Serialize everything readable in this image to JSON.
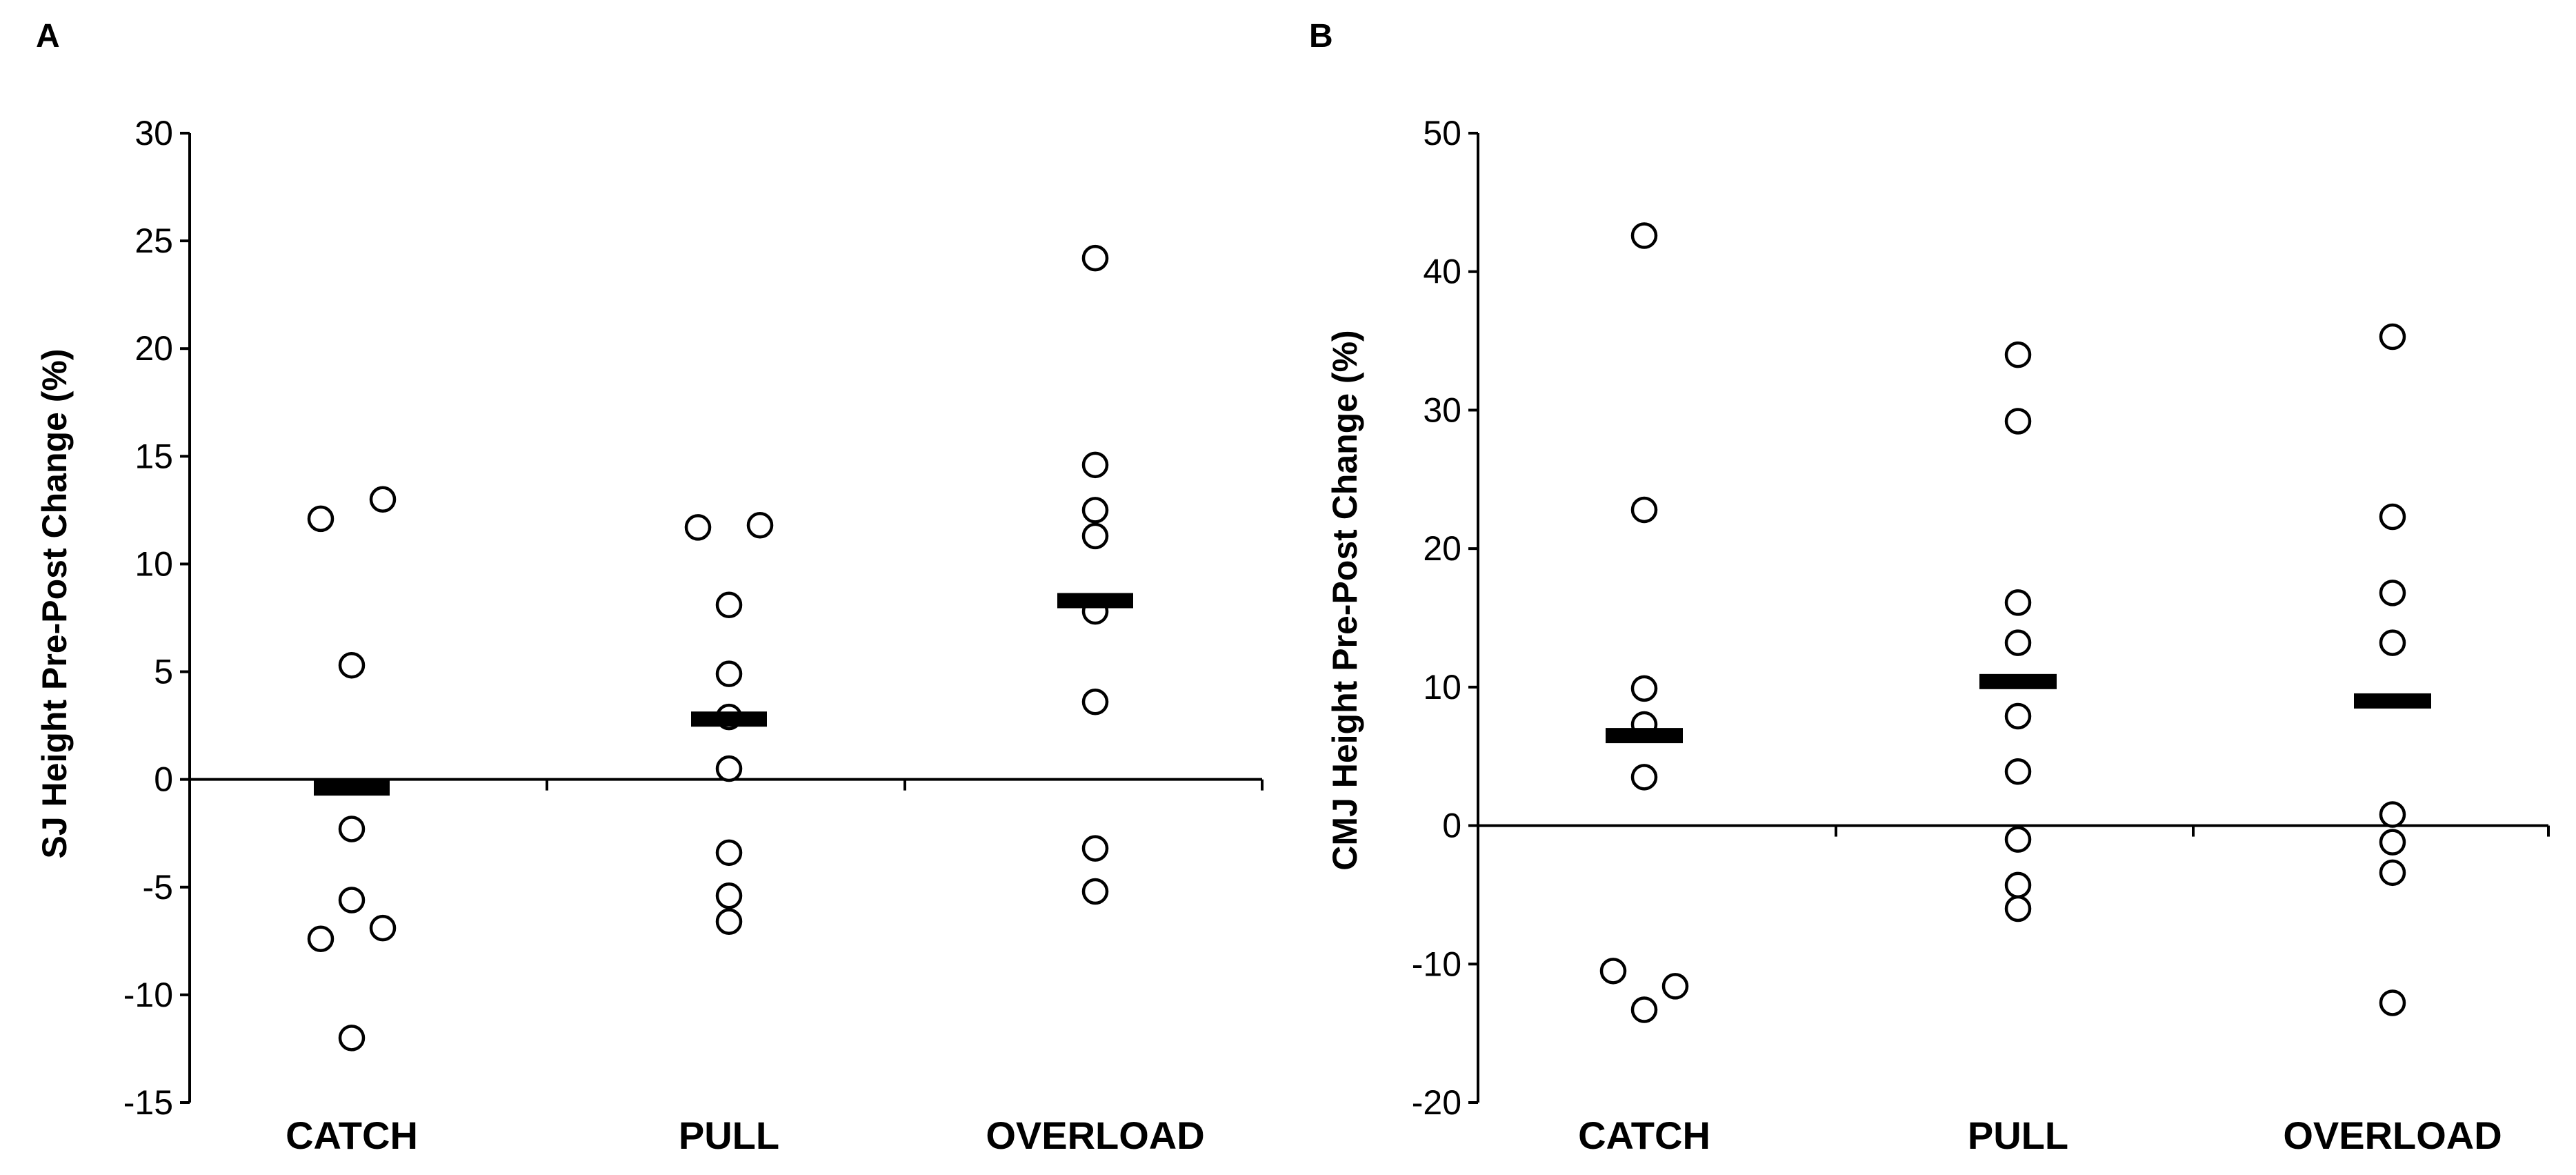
{
  "chart_data": [
    {
      "panel": "A",
      "type": "scatter",
      "ylabel": "SJ Height Pre-Post Change (%)",
      "ylim": [
        -15,
        30
      ],
      "yticks": [
        30,
        25,
        20,
        15,
        10,
        5,
        0,
        -5,
        -10,
        -15
      ],
      "categories": [
        "CATCH",
        "PULL",
        "OVERLOAD"
      ],
      "groups": [
        {
          "name": "CATCH",
          "mean": -0.4,
          "points": [
            {
              "offset": -0.5,
              "y": 12.1
            },
            {
              "offset": 0.5,
              "y": 13.0
            },
            {
              "offset": 0.0,
              "y": 5.3
            },
            {
              "offset": 0.0,
              "y": -2.3
            },
            {
              "offset": 0.0,
              "y": -5.6
            },
            {
              "offset": -0.5,
              "y": -7.4
            },
            {
              "offset": 0.5,
              "y": -6.9
            },
            {
              "offset": 0.0,
              "y": -12.0
            }
          ]
        },
        {
          "name": "PULL",
          "mean": 2.8,
          "points": [
            {
              "offset": -0.5,
              "y": 11.7
            },
            {
              "offset": 0.5,
              "y": 11.8
            },
            {
              "offset": 0.0,
              "y": 8.1
            },
            {
              "offset": 0.0,
              "y": 4.9
            },
            {
              "offset": 0.0,
              "y": 2.9
            },
            {
              "offset": 0.0,
              "y": 0.5
            },
            {
              "offset": 0.0,
              "y": -3.4
            },
            {
              "offset": 0.0,
              "y": -5.4
            },
            {
              "offset": 0.0,
              "y": -6.6
            }
          ]
        },
        {
          "name": "OVERLOAD",
          "mean": 8.3,
          "points": [
            {
              "offset": 0.0,
              "y": 24.2
            },
            {
              "offset": 0.0,
              "y": 14.6
            },
            {
              "offset": 0.0,
              "y": 12.5
            },
            {
              "offset": 0.0,
              "y": 11.3
            },
            {
              "offset": 0.0,
              "y": 7.8
            },
            {
              "offset": 0.0,
              "y": 3.6
            },
            {
              "offset": 0.0,
              "y": -3.2
            },
            {
              "offset": 0.0,
              "y": -5.2
            }
          ]
        }
      ]
    },
    {
      "panel": "B",
      "type": "scatter",
      "ylabel": "CMJ Height Pre-Post Change (%)",
      "ylim": [
        -20,
        50
      ],
      "yticks": [
        50,
        40,
        30,
        20,
        10,
        0,
        -10,
        -20
      ],
      "categories": [
        "CATCH",
        "PULL",
        "OVERLOAD"
      ],
      "groups": [
        {
          "name": "CATCH",
          "mean": 6.5,
          "points": [
            {
              "offset": 0.0,
              "y": 42.6
            },
            {
              "offset": 0.0,
              "y": 22.8
            },
            {
              "offset": 0.0,
              "y": 9.9
            },
            {
              "offset": 0.0,
              "y": 7.3
            },
            {
              "offset": 0.0,
              "y": 3.5
            },
            {
              "offset": -0.5,
              "y": -10.5
            },
            {
              "offset": 0.5,
              "y": -11.6
            },
            {
              "offset": 0.0,
              "y": -13.3
            }
          ]
        },
        {
          "name": "PULL",
          "mean": 10.4,
          "points": [
            {
              "offset": 0.0,
              "y": 34.0
            },
            {
              "offset": 0.0,
              "y": 29.2
            },
            {
              "offset": 0.0,
              "y": 16.1
            },
            {
              "offset": 0.0,
              "y": 13.2
            },
            {
              "offset": 0.0,
              "y": 7.9
            },
            {
              "offset": 0.0,
              "y": 3.9
            },
            {
              "offset": 0.0,
              "y": -1.0
            },
            {
              "offset": 0.0,
              "y": -4.3
            },
            {
              "offset": 0.0,
              "y": -6.0
            }
          ]
        },
        {
          "name": "OVERLOAD",
          "mean": 9.0,
          "points": [
            {
              "offset": 0.0,
              "y": 35.3
            },
            {
              "offset": 0.0,
              "y": 22.3
            },
            {
              "offset": 0.0,
              "y": 16.8
            },
            {
              "offset": 0.0,
              "y": 13.2
            },
            {
              "offset": 0.0,
              "y": 0.8
            },
            {
              "offset": 0.0,
              "y": -1.2
            },
            {
              "offset": 0.0,
              "y": -3.4
            },
            {
              "offset": 0.0,
              "y": -12.8
            }
          ]
        }
      ]
    }
  ]
}
